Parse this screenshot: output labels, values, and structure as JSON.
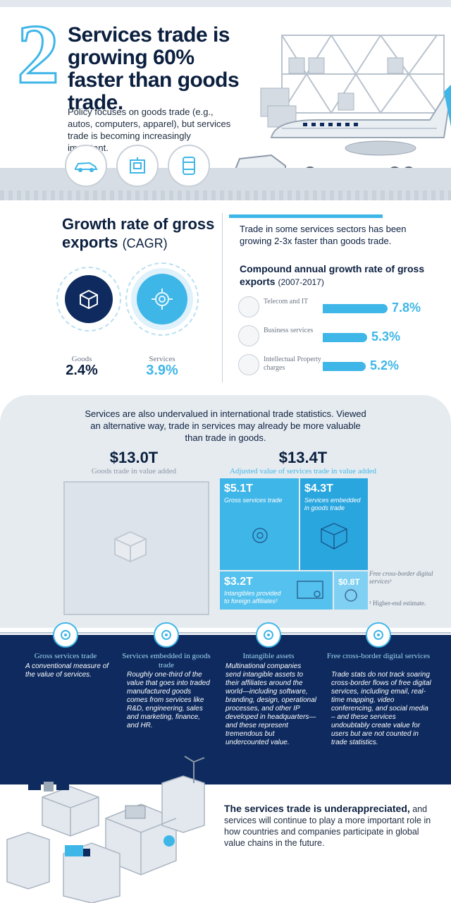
{
  "hero": {
    "number": "2",
    "title": "Services trade is growing 60% faster than goods trade.",
    "subtitle": "Policy focuses on goods trade (e.g., autos, computers, apparel), but services trade is becoming increasingly important.",
    "icons": [
      "car-icon",
      "computer-icon",
      "apparel-icon"
    ]
  },
  "growth": {
    "title_bold": "Growth rate of gross exports",
    "title_light": "(CAGR)",
    "goods": {
      "label": "Goods",
      "value": "2.4%"
    },
    "services": {
      "label": "Services",
      "value": "3.9%"
    }
  },
  "sectors": {
    "lead": "Trade in some services sectors has been growing 2-3x faster than goods trade.",
    "subtitle_bold": "Compound annual growth rate of gross exports",
    "subtitle_light": "(2007-2017)",
    "rows": [
      {
        "label": "Telecom and IT",
        "value": "7.8%",
        "pct": 7.8,
        "icon": "antenna-icon"
      },
      {
        "label": "Business services",
        "value": "5.3%",
        "pct": 5.3,
        "icon": "briefcase-icon"
      },
      {
        "label": "Intellectual Property charges",
        "value": "5.2%",
        "pct": 5.2,
        "icon": "brain-icon"
      }
    ]
  },
  "undervalued": {
    "lead": "Services are also undervalued in international trade statistics. Viewed an alternative way, trade in services may already be more valuable than trade in goods.",
    "goods_value": "$13.0T",
    "goods_caption": "Goods trade in value added",
    "services_value": "$13.4T",
    "services_caption": "Adjusted value of services trade in value added",
    "cells": [
      {
        "value": "$5.1T",
        "caption": "Gross services trade"
      },
      {
        "value": "$4.3T",
        "caption": "Services embedded in goods trade"
      },
      {
        "value": "$3.2T",
        "caption": "Intangibles provided to foreign affiliates¹"
      },
      {
        "value": "$0.8T",
        "caption": "Free cross-border digital services¹"
      }
    ],
    "footnote": "¹ Higher-end estimate."
  },
  "columns": [
    {
      "title": "Gross services trade",
      "body": "A conventional measure of the value of services.",
      "icon": "gear-icon"
    },
    {
      "title": "Services embedded in goods trade",
      "body": "Roughly one-third of the value that goes into traded manufactured goods comes from services like R&D, engineering, sales and marketing, finance, and HR.",
      "icon": "box-icon"
    },
    {
      "title": "Intangible assets",
      "body": "Multinational companies send intangible assets to their affiliates around the world—including software, branding, design, operational processes, and other IP developed in headquarters—and these represent tremendous but undercounted value.",
      "icon": "certificate-icon"
    },
    {
      "title": "Free cross-border digital services",
      "body": "Trade stats do not track soaring cross-border flows of free digital services, including email, real-time mapping, video conferencing, and social media – and these services undoubtably create value for users but are not counted in trade statistics.",
      "icon": "brain-icon"
    }
  ],
  "conclusion": {
    "bold": "The services trade is underappreciated,",
    "rest": "and services will continue to play a more important role in how countries and companies participate in global value chains in the future."
  },
  "colors": {
    "navy": "#0e2a5e",
    "accent": "#3fb6e8",
    "panel": "#e6ebf0"
  }
}
